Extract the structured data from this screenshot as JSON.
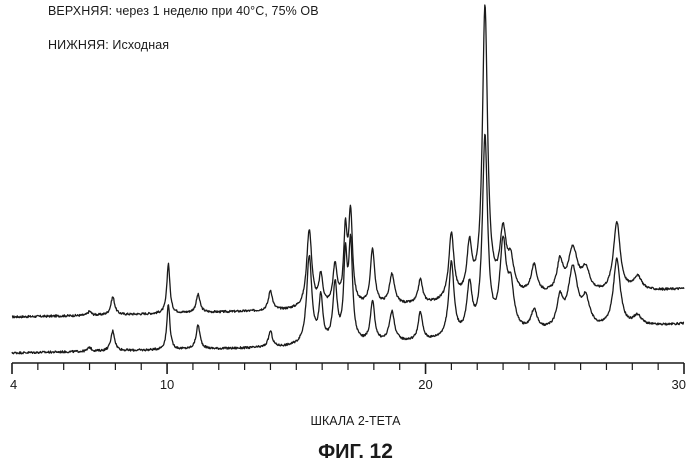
{
  "chart_data": {
    "type": "line",
    "title": "",
    "xlabel": "ШКАЛА 2-ТЕТА",
    "ylabel": "",
    "xlim": [
      4,
      30
    ],
    "x_ticks": [
      4,
      10,
      20,
      30
    ],
    "x_minor_step": 1,
    "grid": false,
    "legend_placement": "top-left",
    "series": [
      {
        "name": "ВЕРХНЯЯ: через 1 неделю при 40°C, 75% ОВ",
        "offset": 35,
        "baseline": [
          [
            4,
            4
          ],
          [
            8,
            6
          ],
          [
            14,
            10
          ],
          [
            20,
            16
          ],
          [
            24,
            24
          ],
          [
            27,
            26
          ],
          [
            29,
            30
          ],
          [
            30,
            32
          ]
        ],
        "peaks": [
          {
            "x": 7.0,
            "h": 4,
            "w": 0.08
          },
          {
            "x": 7.9,
            "h": 18,
            "w": 0.09
          },
          {
            "x": 10.05,
            "h": 50,
            "w": 0.07
          },
          {
            "x": 11.2,
            "h": 18,
            "w": 0.09
          },
          {
            "x": 14.0,
            "h": 20,
            "w": 0.09
          },
          {
            "x": 15.5,
            "h": 78,
            "w": 0.12
          },
          {
            "x": 15.95,
            "h": 30,
            "w": 0.09
          },
          {
            "x": 16.5,
            "h": 40,
            "w": 0.1
          },
          {
            "x": 16.9,
            "h": 70,
            "w": 0.08
          },
          {
            "x": 17.1,
            "h": 90,
            "w": 0.09
          },
          {
            "x": 17.95,
            "h": 56,
            "w": 0.1
          },
          {
            "x": 18.7,
            "h": 30,
            "w": 0.12
          },
          {
            "x": 19.8,
            "h": 24,
            "w": 0.1
          },
          {
            "x": 21.0,
            "h": 66,
            "w": 0.12
          },
          {
            "x": 21.7,
            "h": 50,
            "w": 0.12
          },
          {
            "x": 22.3,
            "h": 290,
            "w": 0.12
          },
          {
            "x": 23.0,
            "h": 60,
            "w": 0.15
          },
          {
            "x": 23.3,
            "h": 30,
            "w": 0.15
          },
          {
            "x": 24.2,
            "h": 28,
            "w": 0.14
          },
          {
            "x": 25.2,
            "h": 30,
            "w": 0.14
          },
          {
            "x": 25.7,
            "h": 44,
            "w": 0.22
          },
          {
            "x": 26.2,
            "h": 22,
            "w": 0.18
          },
          {
            "x": 27.4,
            "h": 70,
            "w": 0.16
          },
          {
            "x": 28.2,
            "h": 14,
            "w": 0.2
          }
        ]
      },
      {
        "name": "НИЖНЯЯ: Исходная",
        "offset": 0,
        "baseline": [
          [
            4,
            3
          ],
          [
            8,
            5
          ],
          [
            14,
            8
          ],
          [
            20,
            14
          ],
          [
            24,
            22
          ],
          [
            27,
            26
          ],
          [
            29,
            30
          ],
          [
            30,
            32
          ]
        ],
        "peaks": [
          {
            "x": 7.0,
            "h": 4,
            "w": 0.08
          },
          {
            "x": 7.9,
            "h": 20,
            "w": 0.09
          },
          {
            "x": 10.05,
            "h": 46,
            "w": 0.07
          },
          {
            "x": 11.2,
            "h": 24,
            "w": 0.09
          },
          {
            "x": 14.0,
            "h": 16,
            "w": 0.09
          },
          {
            "x": 15.5,
            "h": 88,
            "w": 0.12
          },
          {
            "x": 15.95,
            "h": 45,
            "w": 0.09
          },
          {
            "x": 16.5,
            "h": 58,
            "w": 0.1
          },
          {
            "x": 16.9,
            "h": 80,
            "w": 0.08
          },
          {
            "x": 17.1,
            "h": 96,
            "w": 0.09
          },
          {
            "x": 17.95,
            "h": 40,
            "w": 0.1
          },
          {
            "x": 18.7,
            "h": 30,
            "w": 0.12
          },
          {
            "x": 19.8,
            "h": 28,
            "w": 0.1
          },
          {
            "x": 21.0,
            "h": 75,
            "w": 0.12
          },
          {
            "x": 21.7,
            "h": 48,
            "w": 0.12
          },
          {
            "x": 22.3,
            "h": 195,
            "w": 0.12
          },
          {
            "x": 23.0,
            "h": 85,
            "w": 0.15
          },
          {
            "x": 23.3,
            "h": 40,
            "w": 0.15
          },
          {
            "x": 24.2,
            "h": 20,
            "w": 0.14
          },
          {
            "x": 25.2,
            "h": 28,
            "w": 0.14
          },
          {
            "x": 25.7,
            "h": 60,
            "w": 0.22
          },
          {
            "x": 26.2,
            "h": 26,
            "w": 0.18
          },
          {
            "x": 27.4,
            "h": 68,
            "w": 0.16
          },
          {
            "x": 28.2,
            "h": 10,
            "w": 0.2
          }
        ]
      }
    ]
  },
  "legend": {
    "upper": "ВЕРХНЯЯ: через  1 неделю при 40°C, 75% ОВ",
    "lower": "НИЖНЯЯ: Исходная"
  },
  "figure": {
    "prefix": "ФИГ.",
    "number": "12"
  }
}
